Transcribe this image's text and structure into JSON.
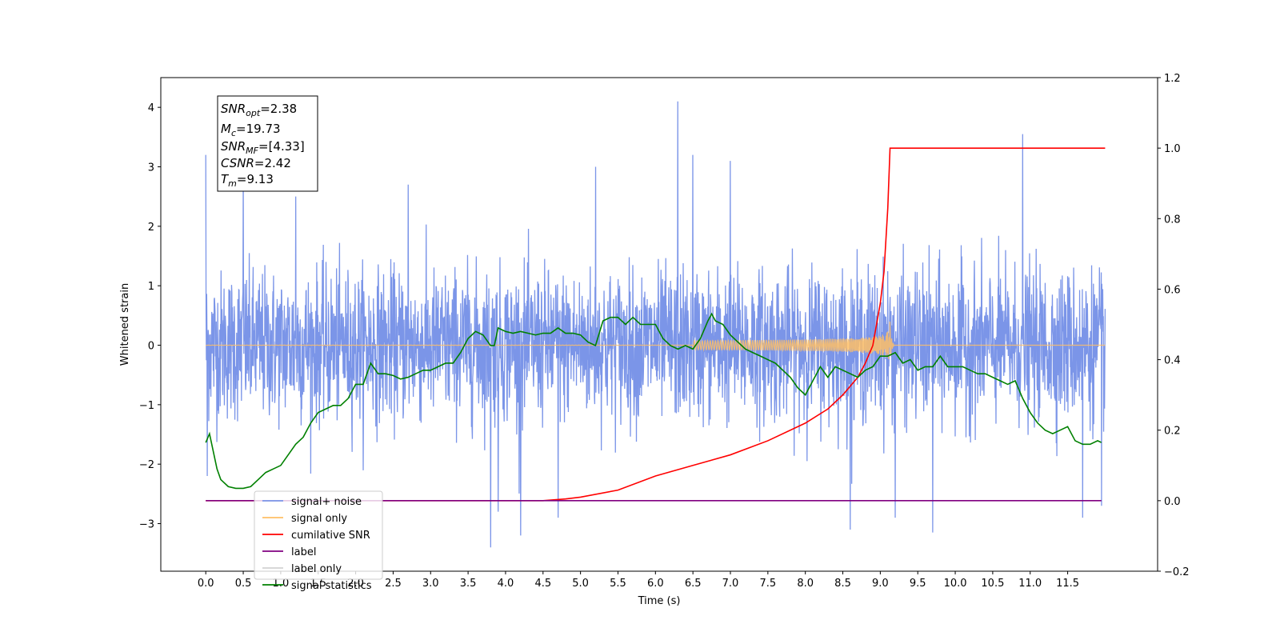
{
  "chart_data": {
    "type": "line",
    "xlabel": "Time (s)",
    "ylabel_left": "Whitened strain",
    "ylabel_right": "",
    "xlim": [
      -0.6,
      12.7
    ],
    "ylim_left": [
      -3.8,
      4.5
    ],
    "ylim_right": [
      -0.2,
      1.2
    ],
    "x_ticks": [
      "0.0",
      "0.5",
      "1.0",
      "1.5",
      "2.0",
      "2.5",
      "3.0",
      "3.5",
      "4.0",
      "4.5",
      "5.0",
      "5.5",
      "6.0",
      "6.5",
      "7.0",
      "7.5",
      "8.0",
      "8.5",
      "9.0",
      "9.5",
      "10.0",
      "10.5",
      "11.0",
      "11.5"
    ],
    "y_ticks_left": [
      -3,
      -2,
      -1,
      0,
      1,
      2,
      3,
      4
    ],
    "y_ticks_right": [
      -0.2,
      0.0,
      0.2,
      0.4,
      0.6,
      0.8,
      1.0,
      1.2
    ],
    "grid": false,
    "annotation": [
      {
        "base": "SNR",
        "sub": "opt",
        "rest": "=2.38"
      },
      {
        "base": "M",
        "sub": "c",
        "rest": "=19.73"
      },
      {
        "base": "SNR",
        "sub": "MF",
        "rest": "=[4.33]"
      },
      {
        "base": "CSNR",
        "sub": "",
        "rest": "=2.42"
      },
      {
        "base": "T",
        "sub": "m",
        "rest": "=9.13"
      }
    ],
    "legend_position": "lower-left",
    "series": [
      {
        "name": "signal+ noise",
        "axis": "left",
        "color": "#7b95e8",
        "kind": "noise",
        "x_range": [
          0.0,
          12.0
        ],
        "typical_amplitude": [
          -1.6,
          1.6
        ],
        "peaks": [
          {
            "x": 0.0,
            "y": 3.2
          },
          {
            "x": 0.02,
            "y": -2.2
          },
          {
            "x": 0.5,
            "y": 2.9
          },
          {
            "x": 1.2,
            "y": 2.5
          },
          {
            "x": 2.7,
            "y": 2.7
          },
          {
            "x": 3.9,
            "y": -2.8
          },
          {
            "x": 3.8,
            "y": -3.4
          },
          {
            "x": 4.2,
            "y": -3.2
          },
          {
            "x": 4.7,
            "y": -2.9
          },
          {
            "x": 5.2,
            "y": 3.0
          },
          {
            "x": 6.3,
            "y": 4.1
          },
          {
            "x": 6.5,
            "y": 3.2
          },
          {
            "x": 7.0,
            "y": 3.1
          },
          {
            "x": 8.6,
            "y": -3.1
          },
          {
            "x": 9.2,
            "y": -2.9
          },
          {
            "x": 9.7,
            "y": -3.15
          },
          {
            "x": 10.9,
            "y": 3.55
          },
          {
            "x": 11.7,
            "y": -2.9
          },
          {
            "x": 11.95,
            "y": -2.7
          }
        ]
      },
      {
        "name": "signal only",
        "axis": "left",
        "color": "#ffbf66",
        "kind": "chirp",
        "x_range": [
          0.0,
          12.0
        ],
        "merger_time": 9.13,
        "peak_amplitude": 0.4
      },
      {
        "name": "cumilative SNR",
        "axis": "right",
        "color": "#ff0000",
        "x": [
          0.0,
          4.5,
          4.8,
          5.0,
          5.5,
          6.0,
          6.5,
          7.0,
          7.5,
          8.0,
          8.3,
          8.5,
          8.7,
          8.8,
          8.9,
          9.0,
          9.05,
          9.1,
          9.13,
          12.0
        ],
        "y": [
          0.0,
          0.0,
          0.005,
          0.01,
          0.03,
          0.07,
          0.1,
          0.13,
          0.17,
          0.22,
          0.26,
          0.3,
          0.35,
          0.39,
          0.44,
          0.56,
          0.65,
          0.83,
          1.0,
          1.0
        ]
      },
      {
        "name": "label",
        "axis": "right",
        "color": "#800080",
        "x": [
          0.0,
          11.95
        ],
        "y": [
          0.0,
          0.0
        ]
      },
      {
        "name": "label only",
        "axis": "right",
        "color": "#d3d3d3",
        "hidden": true,
        "x": [],
        "y": []
      },
      {
        "name": "signal statistics",
        "axis": "right",
        "color": "#008000",
        "x": [
          0.0,
          0.05,
          0.1,
          0.15,
          0.2,
          0.3,
          0.4,
          0.5,
          0.6,
          0.7,
          0.8,
          0.9,
          1.0,
          1.1,
          1.2,
          1.3,
          1.4,
          1.5,
          1.6,
          1.7,
          1.8,
          1.9,
          2.0,
          2.1,
          2.2,
          2.3,
          2.4,
          2.5,
          2.6,
          2.7,
          2.8,
          2.9,
          3.0,
          3.1,
          3.2,
          3.3,
          3.4,
          3.5,
          3.6,
          3.7,
          3.8,
          3.85,
          3.9,
          4.0,
          4.1,
          4.2,
          4.3,
          4.4,
          4.5,
          4.6,
          4.7,
          4.8,
          4.9,
          5.0,
          5.1,
          5.2,
          5.3,
          5.4,
          5.5,
          5.6,
          5.7,
          5.8,
          5.9,
          6.0,
          6.1,
          6.2,
          6.3,
          6.4,
          6.5,
          6.6,
          6.7,
          6.75,
          6.8,
          6.9,
          7.0,
          7.1,
          7.2,
          7.3,
          7.4,
          7.5,
          7.6,
          7.7,
          7.8,
          7.9,
          8.0,
          8.1,
          8.2,
          8.3,
          8.4,
          8.5,
          8.6,
          8.7,
          8.8,
          8.9,
          9.0,
          9.1,
          9.2,
          9.3,
          9.4,
          9.5,
          9.6,
          9.7,
          9.8,
          9.9,
          10.0,
          10.1,
          10.2,
          10.3,
          10.4,
          10.5,
          10.6,
          10.7,
          10.8,
          10.9,
          11.0,
          11.1,
          11.2,
          11.3,
          11.4,
          11.5,
          11.6,
          11.7,
          11.8,
          11.9,
          11.95
        ],
        "y": [
          0.165,
          0.19,
          0.14,
          0.09,
          0.06,
          0.04,
          0.035,
          0.035,
          0.04,
          0.06,
          0.08,
          0.09,
          0.1,
          0.13,
          0.16,
          0.18,
          0.22,
          0.25,
          0.26,
          0.27,
          0.27,
          0.29,
          0.33,
          0.33,
          0.39,
          0.36,
          0.36,
          0.355,
          0.345,
          0.35,
          0.36,
          0.37,
          0.37,
          0.38,
          0.39,
          0.39,
          0.42,
          0.46,
          0.48,
          0.47,
          0.44,
          0.44,
          0.49,
          0.48,
          0.475,
          0.48,
          0.475,
          0.47,
          0.475,
          0.475,
          0.49,
          0.475,
          0.475,
          0.47,
          0.45,
          0.44,
          0.51,
          0.52,
          0.52,
          0.5,
          0.52,
          0.5,
          0.5,
          0.5,
          0.46,
          0.44,
          0.43,
          0.44,
          0.43,
          0.46,
          0.51,
          0.53,
          0.51,
          0.5,
          0.47,
          0.45,
          0.43,
          0.42,
          0.41,
          0.4,
          0.39,
          0.37,
          0.35,
          0.32,
          0.3,
          0.34,
          0.38,
          0.35,
          0.38,
          0.37,
          0.36,
          0.35,
          0.37,
          0.38,
          0.41,
          0.41,
          0.42,
          0.39,
          0.4,
          0.37,
          0.38,
          0.38,
          0.41,
          0.38,
          0.38,
          0.38,
          0.37,
          0.36,
          0.36,
          0.35,
          0.34,
          0.33,
          0.34,
          0.29,
          0.25,
          0.22,
          0.2,
          0.19,
          0.2,
          0.21,
          0.17,
          0.16,
          0.16,
          0.17,
          0.165
        ]
      }
    ]
  }
}
